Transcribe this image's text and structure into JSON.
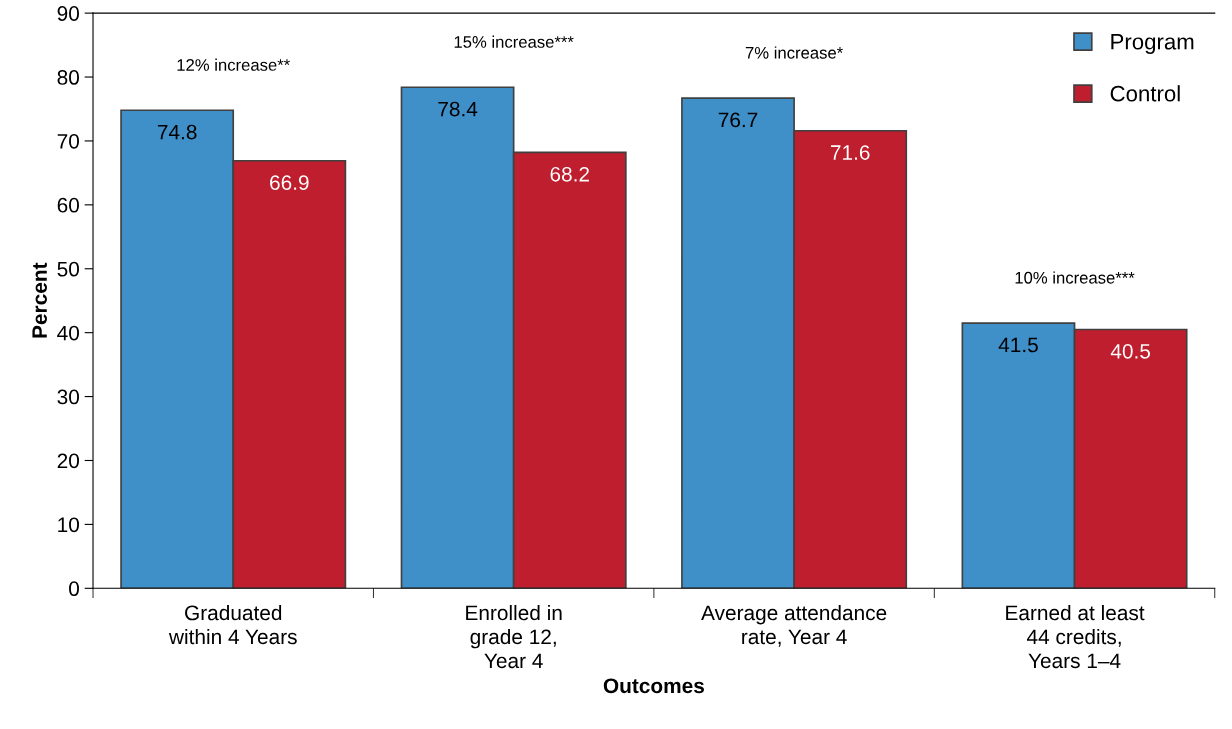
{
  "chart_data": {
    "type": "bar",
    "xlabel": "Outcomes",
    "ylabel": "Percent",
    "categories": [
      "Graduated\nwithin 4 Years",
      "Enrolled in\ngrade 12,\nYear 4",
      "Average attendance\nrate, Year 4",
      "Earned at least\n44 credits,\nYears 1–4"
    ],
    "series": [
      {
        "name": "Program",
        "color": "#3f8fc9",
        "values": [
          74.8,
          78.4,
          76.7,
          41.5
        ]
      },
      {
        "name": "Control",
        "color": "#be1e2d",
        "values": [
          66.9,
          68.2,
          71.6,
          40.5
        ]
      }
    ],
    "ylim": [
      0,
      90
    ],
    "yticks": [
      0,
      10,
      20,
      30,
      40,
      50,
      60,
      70,
      80,
      90
    ],
    "data_labels": true,
    "grid": false,
    "legend": "top right",
    "annotations": [
      "12% increase**",
      "15% increase***",
      "7% increase*",
      "10% increase***"
    ]
  }
}
